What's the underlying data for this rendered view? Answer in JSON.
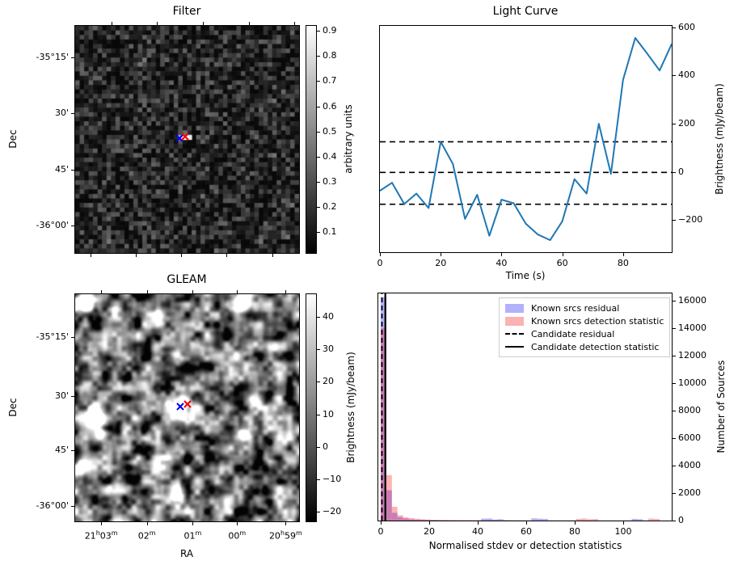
{
  "figure": {
    "background": "#ffffff"
  },
  "chart_data": [
    {
      "id": "filter_map",
      "type": "heatmap",
      "title": "Filter",
      "xlabel": "",
      "ylabel": "Dec",
      "image_description": "grayscale pixelated noise map, dark background with one bright compact source at centre",
      "y_ticks": [
        {
          "label": "-35°15'",
          "f": 0.139
        },
        {
          "label": "30'",
          "f": 0.384
        },
        {
          "label": "45'",
          "f": 0.633
        },
        {
          "label": "-36°00'",
          "f": 0.879
        }
      ],
      "x_ticks_bottom_f": [
        0.069,
        0.271,
        0.473,
        0.675,
        0.881
      ],
      "x_ticks_top_f": [
        0.162,
        0.366,
        0.571,
        0.776,
        0.978
      ],
      "colorbar": {
        "label": "arbitrary units",
        "min": 0.017,
        "max": 0.92,
        "ticks": [
          0.9,
          0.8,
          0.7,
          0.6,
          0.5,
          0.4,
          0.3,
          0.2,
          0.1
        ]
      },
      "hotspot": {
        "fx": 0.48,
        "fy": 0.49
      },
      "markers": [
        {
          "name": "filter-candidate-marker-blue",
          "symbol": "x",
          "color": "#0000ee",
          "fx": 0.467,
          "fy": 0.493
        },
        {
          "name": "filter-known-source-marker-red",
          "symbol": "x",
          "color": "#ee0000",
          "fx": 0.492,
          "fy": 0.486
        }
      ]
    },
    {
      "id": "light_curve",
      "type": "line",
      "title": "Light Curve",
      "xlabel": "Time (s)",
      "ylabel": "Brightness (mJy/beam)",
      "line_color": "#1f77b4",
      "x": [
        0,
        4,
        8,
        12,
        16,
        20,
        24,
        28,
        32,
        36,
        40,
        44,
        48,
        52,
        56,
        60,
        64,
        68,
        72,
        76,
        80,
        84,
        88,
        92,
        96
      ],
      "y": [
        -78,
        -45,
        -133,
        -90,
        -150,
        125,
        33,
        -195,
        -95,
        -265,
        -115,
        -130,
        -215,
        -260,
        -283,
        -205,
        -30,
        -90,
        200,
        -8,
        382,
        556,
        490,
        421,
        531
      ],
      "threshold_lines": [
        125,
        -2,
        -134
      ],
      "xlim": [
        0,
        96
      ],
      "ylim": [
        -333,
        606
      ],
      "x_ticks": [
        0,
        20,
        40,
        60,
        80
      ],
      "y_ticks": [
        -200,
        0,
        200,
        400,
        600
      ],
      "y_axis_side": "right",
      "grid": false
    },
    {
      "id": "gleam_map",
      "type": "heatmap",
      "title": "GLEAM",
      "xlabel": "RA",
      "ylabel": "Dec",
      "image_description": "smooth grayscale radio map with several bright compact sources and dark noise patches",
      "y_ticks": [
        {
          "label": "-35°15'",
          "f": 0.188
        },
        {
          "label": "30'",
          "f": 0.448
        },
        {
          "label": "45'",
          "f": 0.686
        },
        {
          "label": "-36°00'",
          "f": 0.932
        }
      ],
      "x_ticks": [
        {
          "label": "21h03m",
          "f": 0.116
        },
        {
          "label": "02m",
          "f": 0.32
        },
        {
          "label": "01m",
          "f": 0.525
        },
        {
          "label": "00m",
          "f": 0.723
        },
        {
          "label": "20h59m",
          "f": 0.94
        }
      ],
      "top_ticks": true,
      "colorbar": {
        "label": "Brightness (mJy/beam)",
        "min": -23,
        "max": 47,
        "ticks": [
          40,
          30,
          20,
          10,
          0,
          -10,
          -20
        ]
      },
      "sources": [
        {
          "fx": 0.043,
          "fy": 0.035,
          "amp": 1.3,
          "r": 8
        },
        {
          "fx": 0.74,
          "fy": 0.03,
          "amp": 1.3,
          "r": 8
        },
        {
          "fx": 0.08,
          "fy": 0.54,
          "amp": 1.5,
          "r": 10
        },
        {
          "fx": 0.108,
          "fy": 0.615,
          "amp": 0.9,
          "r": 6
        },
        {
          "fx": 0.47,
          "fy": 0.49,
          "amp": 1.4,
          "r": 9
        },
        {
          "fx": 0.794,
          "fy": 0.468,
          "amp": 0.9,
          "r": 6
        },
        {
          "fx": 0.754,
          "fy": 0.621,
          "amp": 1.0,
          "r": 6
        },
        {
          "fx": 0.458,
          "fy": 0.869,
          "amp": 1.1,
          "r": 7
        },
        {
          "fx": 0.188,
          "fy": 0.851,
          "amp": 0.9,
          "r": 6
        },
        {
          "fx": 0.03,
          "fy": 0.76,
          "amp": 0.75,
          "r": 6
        },
        {
          "fx": 0.375,
          "fy": 0.1,
          "amp": 0.55,
          "r": 7
        },
        {
          "fx": 0.88,
          "fy": 0.28,
          "amp": 0.5,
          "r": 6
        }
      ],
      "markers": [
        {
          "name": "gleam-candidate-marker-blue",
          "symbol": "x",
          "color": "#0000ee",
          "fx": 0.469,
          "fy": 0.496
        },
        {
          "name": "gleam-known-source-marker-red",
          "symbol": "x",
          "color": "#ee0000",
          "fx": 0.5,
          "fy": 0.483
        }
      ]
    },
    {
      "id": "histogram",
      "type": "bar",
      "title": "",
      "xlabel": "Normalised stdev or detection statistics",
      "ylabel": "Number of Sources",
      "xlim": [
        -1,
        120
      ],
      "ylim": [
        0,
        16500
      ],
      "x_ticks": [
        0,
        20,
        40,
        60,
        80,
        100
      ],
      "y_ticks": [
        0,
        2000,
        4000,
        6000,
        8000,
        10000,
        12000,
        14000,
        16000
      ],
      "y_axis_side": "right",
      "bin_start": 0,
      "bin_width": 2.3,
      "series": [
        {
          "name": "Known srcs residual",
          "fill": "rgba(0,0,255,0.30)",
          "values": [
            16230,
            2200,
            560,
            250,
            150,
            90,
            70,
            50,
            40,
            35,
            30,
            25,
            25,
            20,
            20,
            18,
            15,
            15,
            140,
            150,
            80,
            100,
            30,
            20,
            15,
            12,
            10,
            160,
            140,
            120,
            15,
            12,
            10,
            10,
            8,
            8,
            8,
            8,
            8,
            8,
            6,
            6,
            6,
            6,
            6,
            120,
            100,
            8,
            6,
            6
          ]
        },
        {
          "name": "Known srcs detection statistic",
          "fill": "rgba(255,0,0,0.30)",
          "values": [
            14000,
            3300,
            1000,
            380,
            230,
            180,
            130,
            100,
            80,
            60,
            50,
            45,
            40,
            35,
            30,
            30,
            25,
            25,
            25,
            25,
            25,
            20,
            18,
            15,
            15,
            12,
            12,
            10,
            10,
            10,
            10,
            10,
            8,
            8,
            8,
            120,
            150,
            100,
            120,
            10,
            8,
            8,
            8,
            8,
            8,
            8,
            8,
            8,
            150,
            120
          ]
        }
      ],
      "vlines": [
        {
          "label": "Candidate residual",
          "style": "dashed",
          "x": 0.5
        },
        {
          "label": "Candidate detection statistic",
          "style": "solid",
          "x": 1.9
        }
      ],
      "legend": {
        "items": [
          {
            "label": "Known srcs residual",
            "kind": "patch",
            "color": "#b2b2fa"
          },
          {
            "label": "Known srcs detection statistic",
            "kind": "patch",
            "color": "#fab2b2"
          },
          {
            "label": "Candidate residual",
            "kind": "dashed"
          },
          {
            "label": "Candidate detection statistic",
            "kind": "solid"
          }
        ]
      }
    }
  ]
}
